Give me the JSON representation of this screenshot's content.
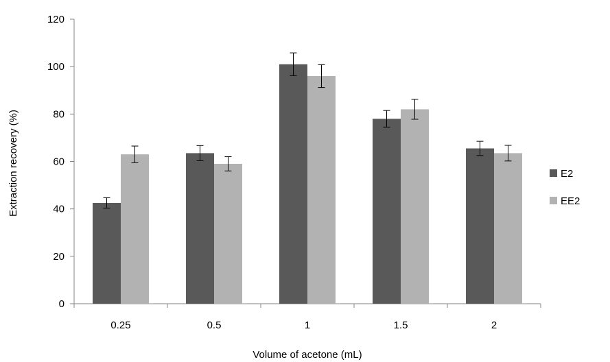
{
  "chart_data": {
    "type": "bar",
    "title": "",
    "xlabel": "Volume of acetone (mL)",
    "ylabel": "Extraction recovery (%)",
    "ylim": [
      0,
      120
    ],
    "yticks": [
      "0",
      "20",
      "40",
      "60",
      "80",
      "100",
      "120"
    ],
    "categories": [
      "0.25",
      "0.5",
      "1",
      "1.5",
      "2"
    ],
    "series": [
      {
        "name": "E2",
        "color": "#595959",
        "values": [
          42.5,
          63.5,
          101,
          78,
          65.5
        ],
        "errors": [
          2.2,
          3.2,
          4.8,
          3.5,
          3.0
        ]
      },
      {
        "name": "EE2",
        "color": "#b2b2b2",
        "values": [
          63,
          59,
          96,
          82,
          63.5
        ],
        "errors": [
          3.5,
          3.0,
          4.8,
          4.2,
          3.3
        ]
      }
    ],
    "grid": false,
    "legend": "right"
  }
}
